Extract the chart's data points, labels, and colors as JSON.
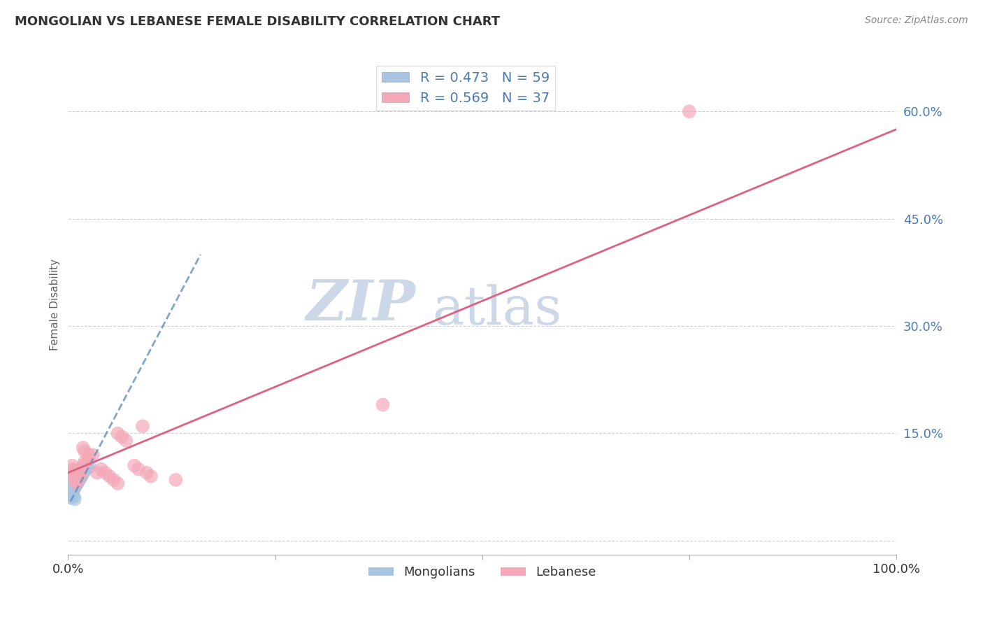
{
  "title": "MONGOLIAN VS LEBANESE FEMALE DISABILITY CORRELATION CHART",
  "source": "Source: ZipAtlas.com",
  "ylabel": "Female Disability",
  "yticks": [
    0.0,
    0.15,
    0.3,
    0.45,
    0.6
  ],
  "ytick_labels": [
    "",
    "15.0%",
    "30.0%",
    "45.0%",
    "60.0%"
  ],
  "xlim": [
    0.0,
    1.0
  ],
  "ylim": [
    -0.02,
    0.68
  ],
  "mongolian_R": 0.473,
  "mongolian_N": 59,
  "lebanese_R": 0.569,
  "lebanese_N": 37,
  "mongolian_color": "#a8c4e0",
  "lebanese_color": "#f4a8b8",
  "mongolian_line_color": "#6090c0",
  "lebanese_line_color": "#e06080",
  "legend_text_color": "#4a7ab5",
  "title_color": "#333333",
  "watermark_color": "#ccd8e8",
  "background_color": "#ffffff",
  "grid_color": "#d0d0d0",
  "mongolian_x": [
    0.003,
    0.004,
    0.004,
    0.005,
    0.005,
    0.005,
    0.005,
    0.005,
    0.006,
    0.006,
    0.006,
    0.006,
    0.006,
    0.006,
    0.007,
    0.007,
    0.007,
    0.007,
    0.007,
    0.007,
    0.008,
    0.008,
    0.008,
    0.008,
    0.008,
    0.009,
    0.009,
    0.009,
    0.009,
    0.01,
    0.01,
    0.01,
    0.01,
    0.011,
    0.011,
    0.011,
    0.012,
    0.012,
    0.012,
    0.013,
    0.013,
    0.014,
    0.014,
    0.015,
    0.015,
    0.016,
    0.017,
    0.018,
    0.019,
    0.02,
    0.022,
    0.024,
    0.026,
    0.003,
    0.004,
    0.005,
    0.006,
    0.007,
    0.008
  ],
  "mongolian_y": [
    0.065,
    0.07,
    0.075,
    0.068,
    0.072,
    0.078,
    0.082,
    0.088,
    0.07,
    0.075,
    0.08,
    0.085,
    0.09,
    0.095,
    0.072,
    0.077,
    0.082,
    0.087,
    0.092,
    0.098,
    0.074,
    0.079,
    0.084,
    0.089,
    0.094,
    0.076,
    0.081,
    0.086,
    0.091,
    0.078,
    0.083,
    0.088,
    0.093,
    0.08,
    0.085,
    0.09,
    0.082,
    0.087,
    0.092,
    0.084,
    0.089,
    0.086,
    0.091,
    0.088,
    0.093,
    0.09,
    0.092,
    0.094,
    0.096,
    0.098,
    0.1,
    0.102,
    0.104,
    0.06,
    0.063,
    0.066,
    0.069,
    0.062,
    0.058
  ],
  "lebanese_x": [
    0.005,
    0.006,
    0.007,
    0.008,
    0.009,
    0.01,
    0.012,
    0.014,
    0.016,
    0.018,
    0.02,
    0.025,
    0.03,
    0.035,
    0.04,
    0.045,
    0.05,
    0.055,
    0.06,
    0.01,
    0.012,
    0.014,
    0.016,
    0.018,
    0.02,
    0.025,
    0.06,
    0.065,
    0.07,
    0.08,
    0.085,
    0.09,
    0.095,
    0.1,
    0.13,
    0.75,
    0.38
  ],
  "lebanese_y": [
    0.105,
    0.1,
    0.095,
    0.09,
    0.085,
    0.085,
    0.09,
    0.095,
    0.1,
    0.105,
    0.11,
    0.115,
    0.12,
    0.095,
    0.1,
    0.095,
    0.09,
    0.085,
    0.08,
    0.08,
    0.085,
    0.09,
    0.095,
    0.13,
    0.125,
    0.12,
    0.15,
    0.145,
    0.14,
    0.105,
    0.1,
    0.16,
    0.095,
    0.09,
    0.085,
    0.6,
    0.19
  ],
  "mongolian_trendline_x": [
    0.003,
    0.16
  ],
  "mongolian_trendline_y": [
    0.055,
    0.4
  ],
  "lebanese_trendline_x0": 0.0,
  "lebanese_trendline_y0": 0.095,
  "lebanese_trendline_x1": 1.0,
  "lebanese_trendline_y1": 0.575
}
